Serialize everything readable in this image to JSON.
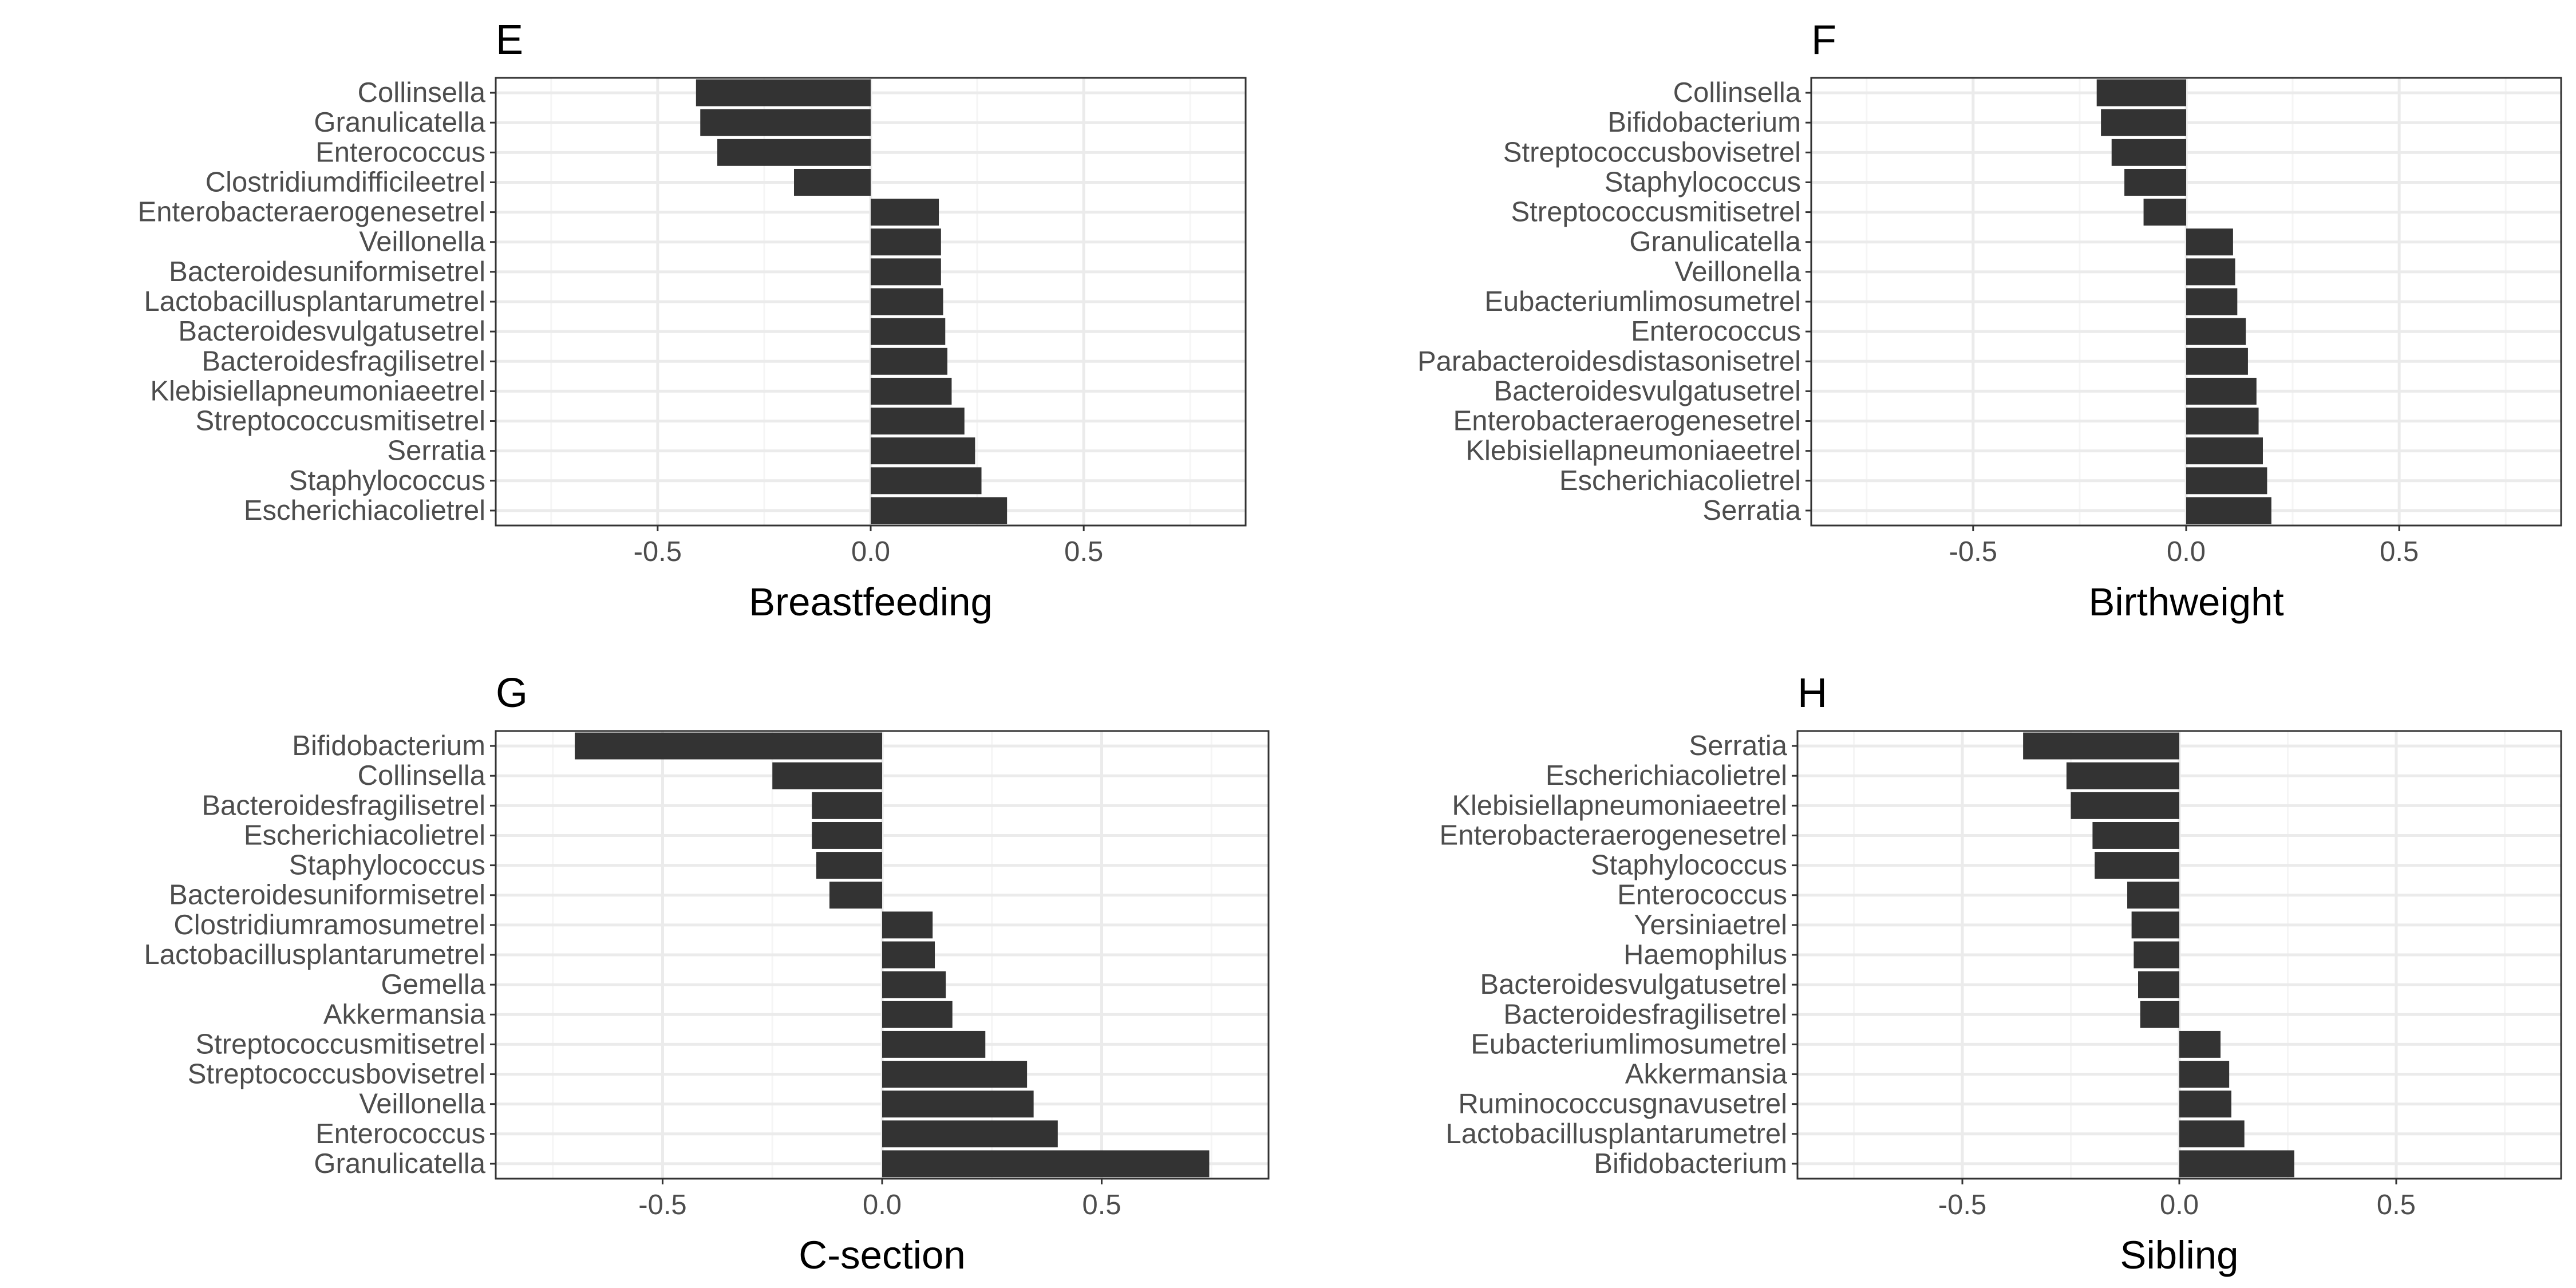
{
  "chart_data": [
    {
      "type": "bar",
      "orientation": "horizontal",
      "panel": "E",
      "xlabel": "Breastfeeding",
      "ylabel": "",
      "xlim": [
        -0.88,
        0.88
      ],
      "xticks": [
        "-0.5",
        "0.0",
        "0.5"
      ],
      "xtick_values": [
        -0.5,
        0,
        0.5
      ],
      "grid": true,
      "categories": [
        "Collinsella",
        "Granulicatella",
        "Enterococcus",
        "Clostridiumdifficileetrel",
        "Enterobacteraerogenesetrel",
        "Veillonella",
        "Bacteroidesuniformisetrel",
        "Lactobacillusplantarumetrel",
        "Bacteroidesvulgatusetrel",
        "Bacteroidesfragilisetrel",
        "Klebisiellapneumoniaeetrel",
        "Streptococcusmitisetrel",
        "Serratia",
        "Staphylococcus",
        "Escherichiacolietrel"
      ],
      "values": [
        -0.41,
        -0.4,
        -0.36,
        -0.18,
        0.16,
        0.165,
        0.165,
        0.17,
        0.175,
        0.18,
        0.19,
        0.22,
        0.245,
        0.26,
        0.32
      ]
    },
    {
      "type": "bar",
      "orientation": "horizontal",
      "panel": "F",
      "xlabel": "Birthweight",
      "ylabel": "",
      "xlim": [
        -0.88,
        0.88
      ],
      "xticks": [
        "-0.5",
        "0.0",
        "0.5"
      ],
      "xtick_values": [
        -0.5,
        0,
        0.5
      ],
      "grid": true,
      "categories": [
        "Collinsella",
        "Bifidobacterium",
        "Streptococcusbovisetrel",
        "Staphylococcus",
        "Streptococcusmitisetrel",
        "Granulicatella",
        "Veillonella",
        "Eubacteriumlimosumetrel",
        "Enterococcus",
        "Parabacteroidesdistasonisetrel",
        "Bacteroidesvulgatusetrel",
        "Enterobacteraerogenesetrel",
        "Klebisiellapneumoniaeetrel",
        "Escherichiacolietrel",
        "Serratia"
      ],
      "values": [
        -0.21,
        -0.2,
        -0.175,
        -0.145,
        -0.1,
        0.11,
        0.115,
        0.12,
        0.14,
        0.145,
        0.165,
        0.17,
        0.18,
        0.19,
        0.2
      ]
    },
    {
      "type": "bar",
      "orientation": "horizontal",
      "panel": "G",
      "xlabel": "C-section",
      "ylabel": "",
      "xlim": [
        -0.88,
        0.88
      ],
      "xticks": [
        "-0.5",
        "0.0",
        "0.5"
      ],
      "xtick_values": [
        -0.5,
        0,
        0.5
      ],
      "grid": true,
      "categories": [
        "Bifidobacterium",
        "Collinsella",
        "Bacteroidesfragilisetrel",
        "Escherichiacolietrel",
        "Staphylococcus",
        "Bacteroidesuniformisetrel",
        "Clostridiumramosumetrel",
        "Lactobacillusplantarumetrel",
        "Gemella",
        "Akkermansia",
        "Streptococcusmitisetrel",
        "Streptococcusbovisetrel",
        "Veillonella",
        "Enterococcus",
        "Granulicatella"
      ],
      "values": [
        -0.7,
        -0.25,
        -0.16,
        -0.16,
        -0.15,
        -0.12,
        0.115,
        0.12,
        0.145,
        0.16,
        0.235,
        0.33,
        0.345,
        0.4,
        0.745
      ]
    },
    {
      "type": "bar",
      "orientation": "horizontal",
      "panel": "H",
      "xlabel": "Sibling",
      "ylabel": "",
      "xlim": [
        -0.88,
        0.88
      ],
      "xticks": [
        "-0.5",
        "0.0",
        "0.5"
      ],
      "xtick_values": [
        -0.5,
        0,
        0.5
      ],
      "grid": true,
      "categories": [
        "Serratia",
        "Escherichiacolietrel",
        "Klebisiellapneumoniaeetrel",
        "Enterobacteraerogenesetrel",
        "Staphylococcus",
        "Enterococcus",
        "Yersiniaetrel",
        "Haemophilus",
        "Bacteroidesvulgatusetrel",
        "Bacteroidesfragilisetrel",
        "Eubacteriumlimosumetrel",
        "Akkermansia",
        "Ruminococcusgnavusetrel",
        "Lactobacillusplantarumetrel",
        "Bifidobacterium"
      ],
      "values": [
        -0.36,
        -0.26,
        -0.25,
        -0.2,
        -0.195,
        -0.12,
        -0.11,
        -0.105,
        -0.095,
        -0.09,
        0.095,
        0.115,
        0.12,
        0.15,
        0.265
      ]
    }
  ],
  "colors": {
    "bar": "#333333",
    "panel_border": "#333333",
    "grid_major": "#ebebeb",
    "grid_minor": "#f5f5f5",
    "tick_text": "#4d4d4d",
    "background": "#ffffff"
  }
}
